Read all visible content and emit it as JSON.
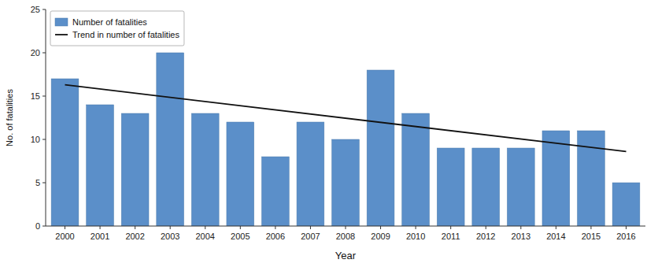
{
  "chart_data": {
    "type": "bar",
    "xlabel": "Year",
    "ylabel": "No. of fatalities",
    "x": [
      2000,
      2001,
      2002,
      2003,
      2004,
      2005,
      2006,
      2007,
      2008,
      2009,
      2010,
      2011,
      2012,
      2013,
      2014,
      2015,
      2016
    ],
    "series": [
      {
        "name": "Number of fatalities",
        "type": "bar",
        "color": "#5b8fc9",
        "values": [
          17,
          14,
          13,
          20,
          13,
          12,
          8,
          12,
          10,
          18,
          13,
          9,
          9,
          9,
          11,
          11,
          5
        ]
      },
      {
        "name": "Trend in number of fatalities",
        "type": "line",
        "color": "#111111",
        "x": [
          2000,
          2016
        ],
        "values": [
          16.3,
          8.6
        ]
      }
    ],
    "xlim": [
      1999.45,
      2016.55
    ],
    "xticks": [
      2000,
      2001,
      2002,
      2003,
      2004,
      2005,
      2006,
      2007,
      2008,
      2009,
      2010,
      2011,
      2012,
      2013,
      2014,
      2015,
      2016
    ],
    "ylim": [
      0,
      25
    ],
    "yticks": [
      0,
      5,
      10,
      15,
      20,
      25
    ],
    "grid": false,
    "legend": "upper left"
  }
}
